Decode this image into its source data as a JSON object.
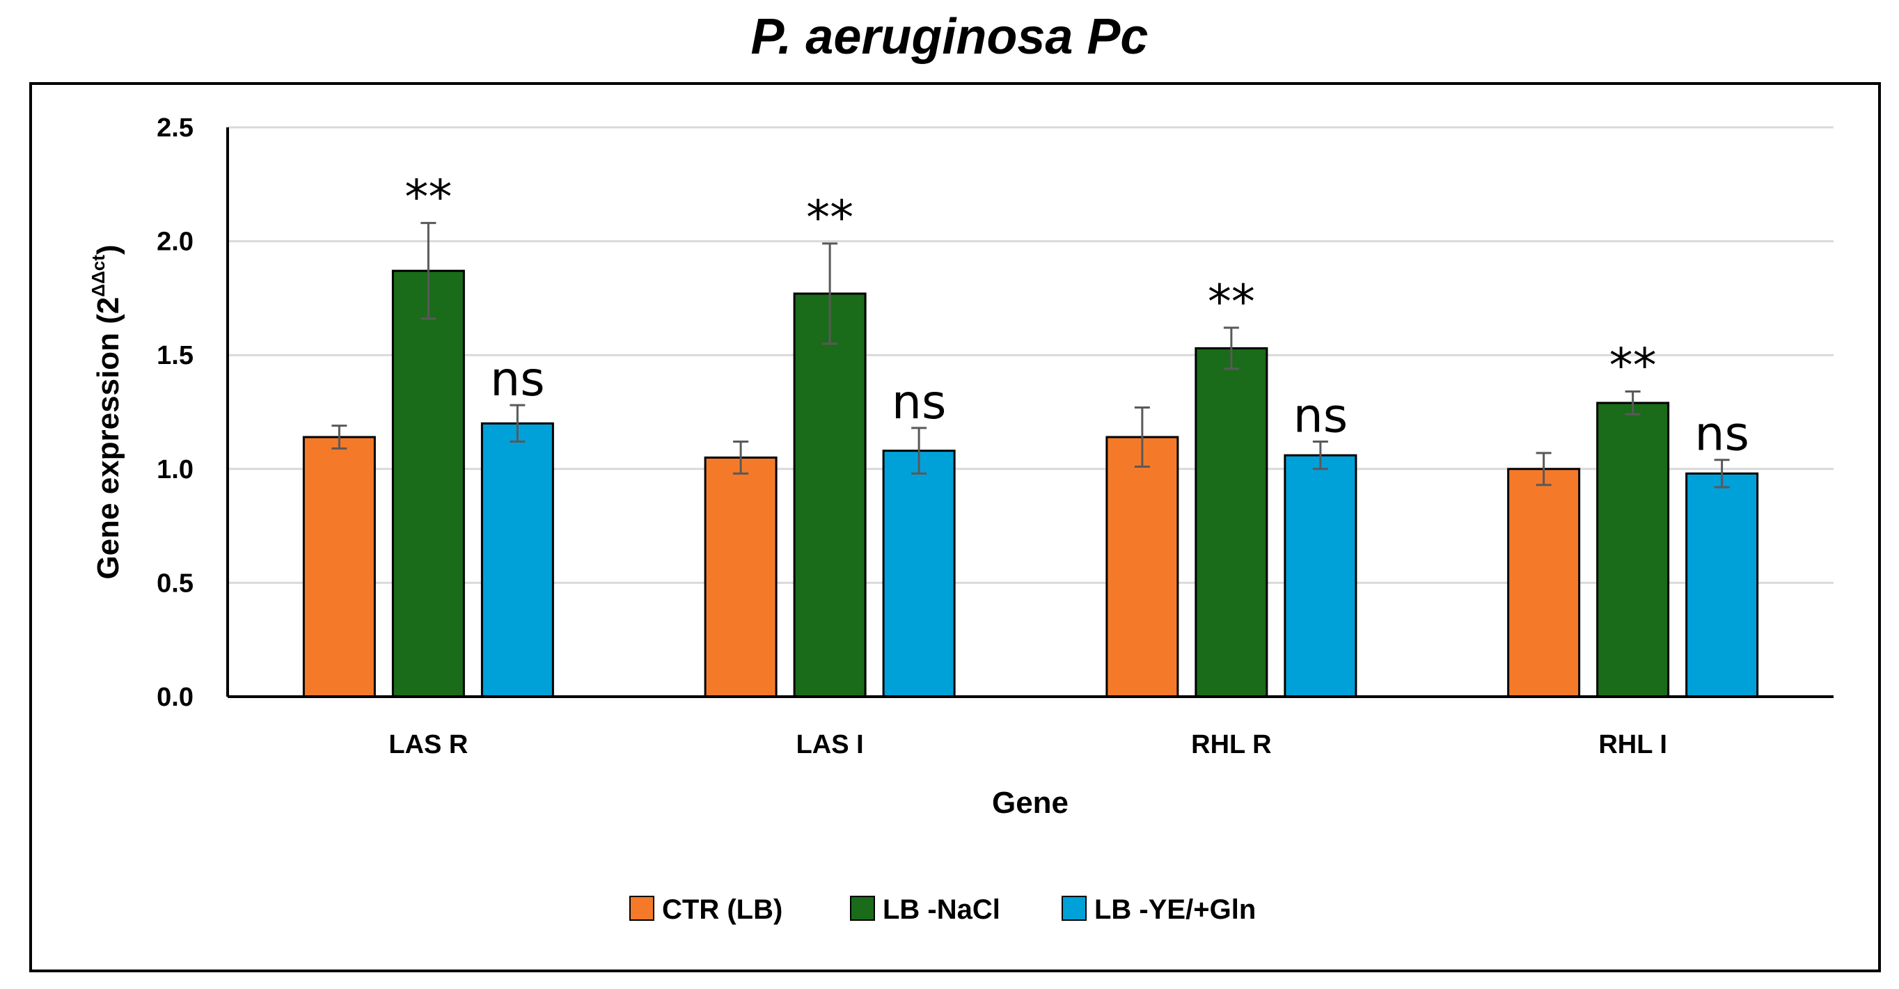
{
  "chart_data": {
    "type": "bar",
    "title": "P. aeruginosa Pc",
    "xlabel": "Gene",
    "ylabel_base": "Gene expression (2",
    "ylabel_sup": "ΔΔct",
    "ylabel_close": ")",
    "ylim": [
      0,
      2.5
    ],
    "yticks": [
      "0.0",
      "0.5",
      "1.0",
      "1.5",
      "2.0",
      "2.5"
    ],
    "grid": "horizontal",
    "legend_position": "bottom",
    "categories": [
      "LAS R",
      "LAS I",
      "RHL R",
      "RHL I"
    ],
    "series": [
      {
        "name": "CTR (LB)",
        "color": "#f47a2a",
        "values": [
          1.14,
          1.05,
          1.14,
          1.0
        ],
        "errors": [
          0.05,
          0.07,
          0.13,
          0.07
        ],
        "significance": [
          "",
          "",
          "",
          ""
        ]
      },
      {
        "name": "LB -NaCl",
        "color": "#1a6b1a",
        "values": [
          1.87,
          1.77,
          1.53,
          1.29
        ],
        "errors": [
          0.21,
          0.22,
          0.09,
          0.05
        ],
        "significance": [
          "**",
          "**",
          "**",
          "**"
        ]
      },
      {
        "name": "LB -YE/+Gln",
        "color": "#00a1d9",
        "values": [
          1.2,
          1.08,
          1.06,
          0.98
        ],
        "errors": [
          0.08,
          0.1,
          0.06,
          0.06
        ],
        "significance": [
          "ns",
          "ns",
          "ns",
          "ns"
        ]
      }
    ]
  }
}
